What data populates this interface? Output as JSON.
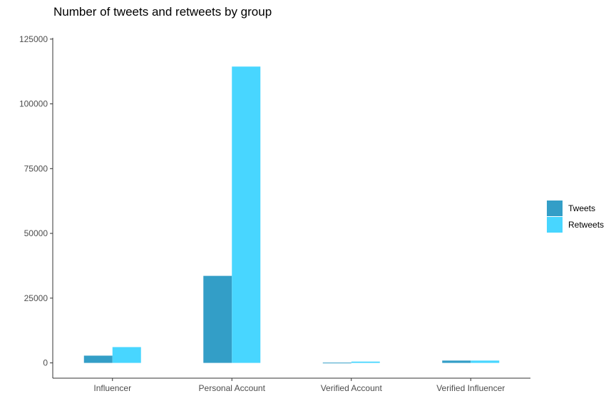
{
  "chart_data": {
    "type": "bar",
    "title": "Number of tweets and retweets by group",
    "xlabel": "",
    "ylabel": "",
    "categories": [
      "Influencer",
      "Personal Account",
      "Verified Account",
      "Verified Influencer"
    ],
    "series": [
      {
        "name": "Tweets",
        "color": "#339ec7",
        "values": [
          2800,
          33600,
          100,
          900
        ]
      },
      {
        "name": "Retweets",
        "color": "#48d6ff",
        "values": [
          6100,
          114400,
          500,
          900
        ]
      }
    ],
    "ylim": [
      -5900,
      125500
    ],
    "yticks": [
      0,
      25000,
      50000,
      75000,
      100000,
      125000
    ],
    "grid": false,
    "legend_position": "right"
  }
}
